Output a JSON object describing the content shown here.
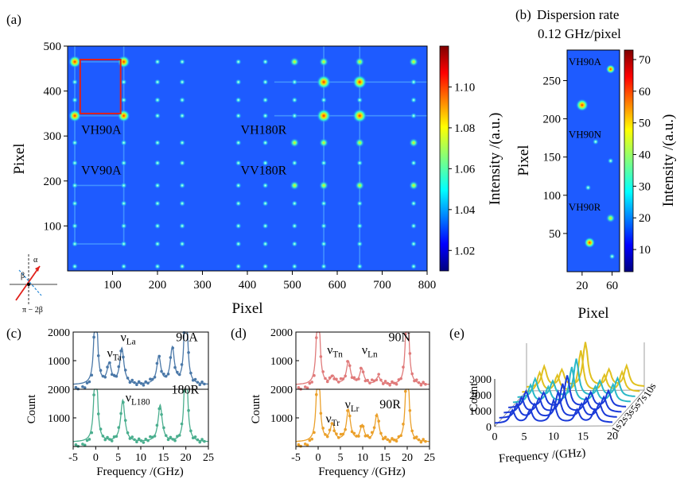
{
  "panels": {
    "a": {
      "label": "(a)"
    },
    "b": {
      "label": "(b)",
      "title_line1": "Dispersion rate",
      "title_line2": "0.12 GHz/pixel"
    },
    "c": {
      "label": "(c)"
    },
    "d": {
      "label": "(d)"
    },
    "e": {
      "label": "(e)"
    }
  },
  "chart_data": [
    {
      "panel": "a",
      "type": "heatmap",
      "xlabel": "Pixel",
      "ylabel": "Pixel",
      "xlim": [
        0,
        800
      ],
      "ylim": [
        0,
        500
      ],
      "xticks": [
        100,
        200,
        300,
        400,
        500,
        600,
        700,
        800
      ],
      "yticks": [
        100,
        200,
        300,
        400,
        500
      ],
      "colorbar": {
        "label": "Intensity /(a.u.)",
        "range": [
          1.01,
          1.12
        ],
        "ticks": [
          1.02,
          1.04,
          1.06,
          1.08,
          1.1
        ]
      },
      "annotations": [
        {
          "text": "VH90A",
          "x": 30,
          "y": 305
        },
        {
          "text": "VV90A",
          "x": 30,
          "y": 215
        },
        {
          "text": "VH180R",
          "x": 385,
          "y": 305
        },
        {
          "text": "VV180R",
          "x": 385,
          "y": 215
        }
      ],
      "highlight_box": {
        "x": [
          28,
          118
        ],
        "y": [
          350,
          470
        ],
        "color": "#e0201a"
      },
      "inset_labels": {
        "alpha": "α",
        "beta": "β",
        "pi_minus_2beta": "π − 2β"
      }
    },
    {
      "panel": "b",
      "type": "heatmap",
      "xlabel": "Pixel",
      "ylabel": "Pixel",
      "xlim": [
        0,
        70
      ],
      "ylim": [
        0,
        290
      ],
      "xticks": [
        20,
        60
      ],
      "yticks": [
        50,
        100,
        150,
        200,
        250
      ],
      "colorbar": {
        "label": "Intensity /(a.u.)",
        "range": [
          3,
          73
        ],
        "ticks": [
          10,
          20,
          30,
          40,
          50,
          60,
          70
        ]
      },
      "annotations": [
        {
          "text": "VH90A",
          "x": 2,
          "y": 270
        },
        {
          "text": "VH90N",
          "x": 2,
          "y": 175
        },
        {
          "text": "VH90R",
          "x": 2,
          "y": 80
        }
      ]
    },
    {
      "panel": "c",
      "type": "scatter",
      "xlabel": "Frequency /(GHz)",
      "ylabel": "Count",
      "xlim": [
        -5,
        25
      ],
      "xticks": [
        -5,
        0,
        5,
        10,
        15,
        20,
        25
      ],
      "subplots": [
        {
          "name": "90A",
          "ylim": [
            0,
            2000
          ],
          "yticks": [
            1000,
            2000
          ],
          "color": "#4a78a8",
          "peaks": [
            {
              "x": 0,
              "y": 4000
            },
            {
              "x": 3,
              "y": 700
            },
            {
              "x": 5.8,
              "y": 1250
            },
            {
              "x": 14,
              "y": 950
            },
            {
              "x": 17,
              "y": 1250
            },
            {
              "x": 20,
              "y": 4000
            }
          ],
          "peak_labels": [
            {
              "text": "νLa",
              "x": 5.5,
              "y": 1680
            },
            {
              "text": "νTa",
              "x": 2.5,
              "y": 1130
            },
            {
              "text": "90A",
              "x": 17.8,
              "y": 1680
            }
          ]
        },
        {
          "name": "180R",
          "ylim": [
            0,
            2000
          ],
          "yticks": [
            1000,
            2000
          ],
          "color": "#4aae8e",
          "peaks": [
            {
              "x": 0,
              "y": 4000
            },
            {
              "x": 6,
              "y": 1450
            },
            {
              "x": 14.3,
              "y": 1280
            },
            {
              "x": 20,
              "y": 4000
            }
          ],
          "peak_labels": [
            {
              "text": "νL180",
              "x": 6.6,
              "y": 1570
            },
            {
              "text": "180R",
              "x": 16.8,
              "y": 1850
            }
          ]
        }
      ]
    },
    {
      "panel": "d",
      "type": "scatter",
      "xlabel": "Frequency /(GHz)",
      "ylabel": "Count",
      "xlim": [
        -5,
        25
      ],
      "xticks": [
        -5,
        0,
        5,
        10,
        15,
        20,
        25
      ],
      "subplots": [
        {
          "name": "90N",
          "ylim": [
            0,
            2000
          ],
          "yticks": [
            1000,
            2000
          ],
          "color": "#e07a7a",
          "peaks": [
            {
              "x": 0,
              "y": 4000
            },
            {
              "x": 3.3,
              "y": 280
            },
            {
              "x": 6.8,
              "y": 800
            },
            {
              "x": 9.8,
              "y": 550
            },
            {
              "x": 13.5,
              "y": 270
            },
            {
              "x": 20,
              "y": 4000
            }
          ],
          "peak_labels": [
            {
              "text": "νTn",
              "x": 2,
              "y": 1230
            },
            {
              "text": "νLn",
              "x": 9.8,
              "y": 1230
            },
            {
              "text": "90N",
              "x": 15.8,
              "y": 1680
            }
          ]
        },
        {
          "name": "90R",
          "ylim": [
            0,
            2000
          ],
          "yticks": [
            1000,
            2000
          ],
          "color": "#eba02a",
          "peaks": [
            {
              "x": 0,
              "y": 4000
            },
            {
              "x": 3.2,
              "y": 600
            },
            {
              "x": 6.8,
              "y": 1100
            },
            {
              "x": 9.9,
              "y": 550
            },
            {
              "x": 13.2,
              "y": 950
            },
            {
              "x": 20,
              "y": 4000
            }
          ],
          "peak_labels": [
            {
              "text": "νLr",
              "x": 6,
              "y": 1330
            },
            {
              "text": "νTr",
              "x": 1.7,
              "y": 840
            },
            {
              "text": "90R",
              "x": 13.8,
              "y": 1330
            }
          ]
        }
      ]
    },
    {
      "panel": "e",
      "type": "line",
      "xlabel": "Frequency /(GHz)",
      "ylabel": "Count",
      "xlim": [
        0,
        20
      ],
      "xticks": [
        0,
        5,
        10,
        15,
        20
      ],
      "ylim": [
        0,
        3000
      ],
      "yticks": [
        0,
        1000,
        2000,
        3000
      ],
      "time_ticks": [
        "1s",
        "2s",
        "3s",
        "5s",
        "7s",
        "10s"
      ],
      "peaks_per_trace": [
        3,
        6,
        10,
        14,
        17
      ]
    }
  ]
}
